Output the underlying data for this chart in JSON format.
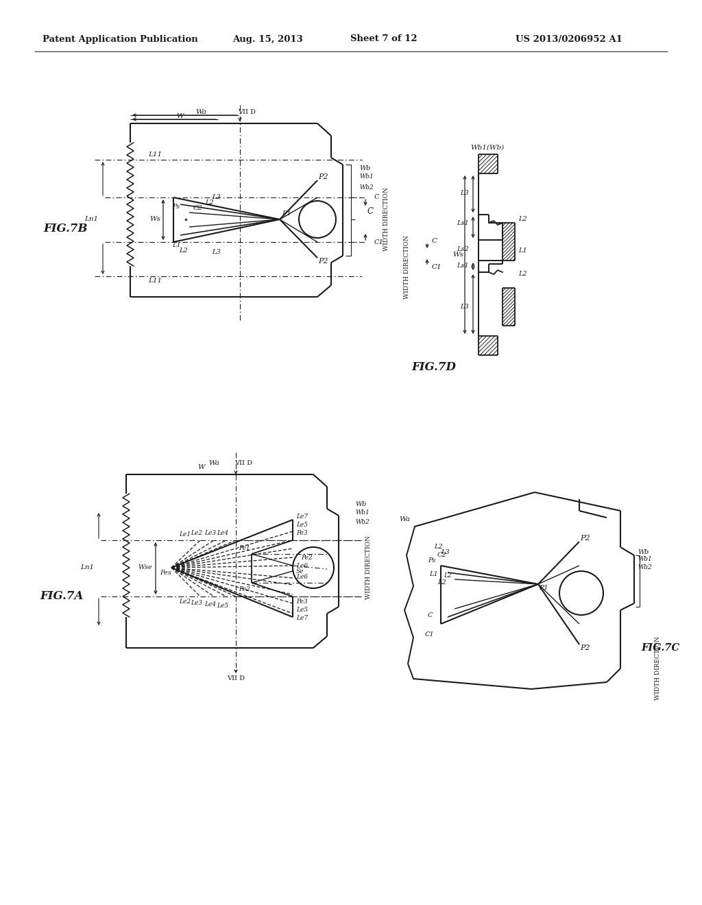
{
  "bg_color": "#ffffff",
  "lc": "#1a1a1a",
  "header_left": "Patent Application Publication",
  "header_date": "Aug. 15, 2013",
  "header_sheet": "Sheet 7 of 12",
  "header_patent": "US 2013/0206952 A1"
}
